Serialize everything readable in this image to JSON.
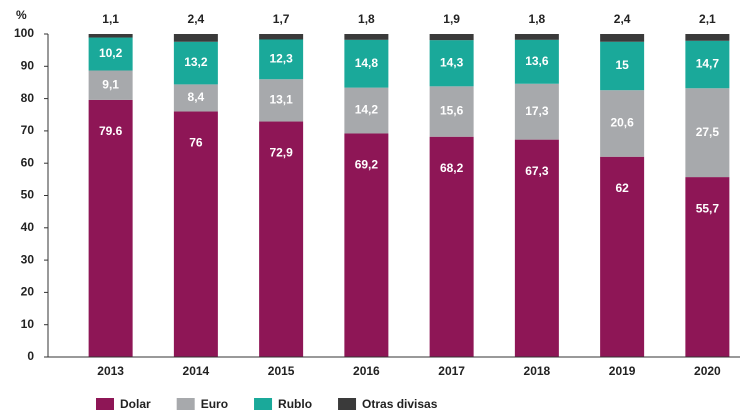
{
  "chart_data": {
    "type": "stacked_bar",
    "y_label": "%",
    "categories": [
      "2013",
      "2014",
      "2015",
      "2016",
      "2017",
      "2018",
      "2019",
      "2020"
    ],
    "series": [
      {
        "name": "Dolar",
        "color": "#8e1656",
        "values": [
          79.6,
          76,
          72.9,
          69.2,
          68.2,
          67.3,
          62,
          55.7
        ],
        "value_labels": [
          "79.6",
          "76",
          "72,9",
          "69,2",
          "68,2",
          "67,3",
          "62",
          "55,7"
        ]
      },
      {
        "name": "Euro",
        "color": "#a7a9ac",
        "values": [
          9.1,
          8.4,
          13.1,
          14.2,
          15.6,
          17.3,
          20.6,
          27.5
        ],
        "value_labels": [
          "9,1",
          "8,4",
          "13,1",
          "14,2",
          "15,6",
          "17,3",
          "20,6",
          "27,5"
        ]
      },
      {
        "name": "Rublo",
        "color": "#1aa99a",
        "values": [
          10.2,
          13.2,
          12.3,
          14.8,
          14.3,
          13.6,
          15,
          14.7
        ],
        "value_labels": [
          "10,2",
          "13,2",
          "12,3",
          "14,8",
          "14,3",
          "13,6",
          "15",
          "14,7"
        ]
      },
      {
        "name": "Otras divisas",
        "color": "#3a3a3a",
        "values": [
          1.1,
          2.4,
          1.7,
          1.8,
          1.9,
          1.8,
          2.4,
          2.1
        ],
        "value_labels": [
          "1,1",
          "2,4",
          "1,7",
          "1,8",
          "1,9",
          "1,8",
          "2,4",
          "2,1"
        ]
      }
    ],
    "ylim": [
      0,
      100
    ],
    "yticks": [
      0,
      10,
      20,
      30,
      40,
      50,
      60,
      70,
      80,
      90,
      100
    ]
  }
}
